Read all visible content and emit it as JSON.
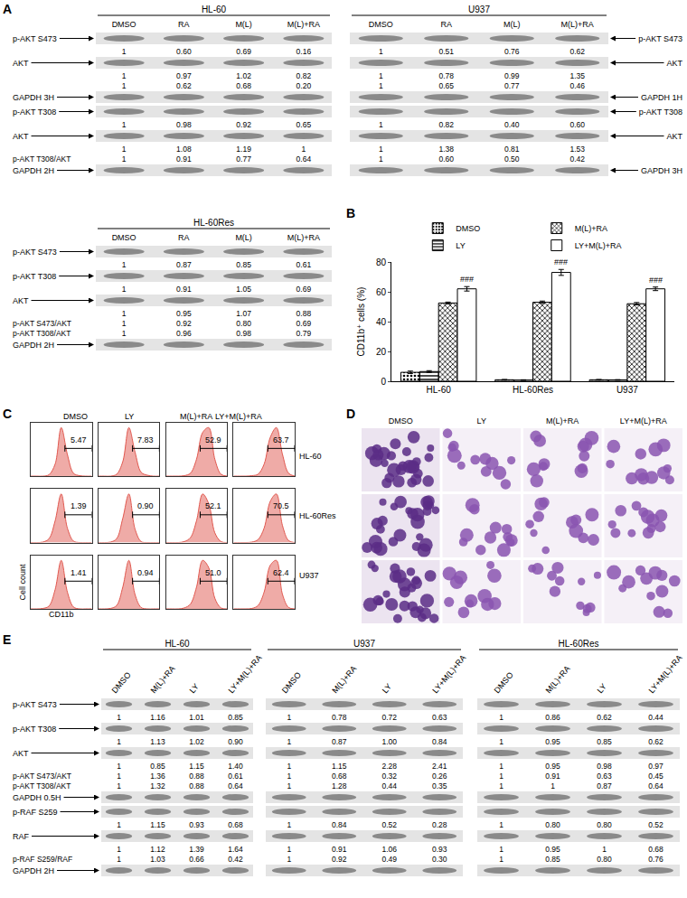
{
  "letters": [
    "A",
    "B",
    "C",
    "D",
    "E"
  ],
  "A": {
    "blots": [
      {
        "title": "HL-60",
        "side": "left",
        "lanes": [
          "DMSO",
          "RA",
          "M(L)",
          "M(L)+RA"
        ],
        "rows": [
          {
            "kind": "band",
            "label": "p-AKT S473"
          },
          {
            "kind": "values",
            "values": [
              "1",
              "0.60",
              "0.69",
              "0.16"
            ]
          },
          {
            "kind": "band",
            "label": "AKT"
          },
          {
            "kind": "values",
            "values": [
              "1",
              "0.97",
              "1.02",
              "0.82"
            ]
          },
          {
            "kind": "values",
            "values": [
              "1",
              "0.62",
              "0.68",
              "0.20"
            ]
          },
          {
            "kind": "band",
            "label": "GAPDH 3H"
          },
          {
            "kind": "band",
            "label": "p-AKT T308"
          },
          {
            "kind": "values",
            "values": [
              "1",
              "0.98",
              "0.92",
              "0.65"
            ]
          },
          {
            "kind": "band",
            "label": "AKT"
          },
          {
            "kind": "values",
            "values": [
              "1",
              "1.08",
              "1.19",
              "1"
            ]
          },
          {
            "kind": "values",
            "label": "p-AKT T308/AKT",
            "values": [
              "1",
              "0.91",
              "0.77",
              "0.64"
            ]
          },
          {
            "kind": "band",
            "label": "GAPDH 2H"
          }
        ]
      },
      {
        "title": "U937",
        "side": "right",
        "lanes": [
          "DMSO",
          "RA",
          "M(L)",
          "M(L)+RA"
        ],
        "rows": [
          {
            "kind": "band",
            "label": "p-AKT S473"
          },
          {
            "kind": "values",
            "values": [
              "1",
              "0.51",
              "0.76",
              "0.62"
            ]
          },
          {
            "kind": "band",
            "label": "AKT"
          },
          {
            "kind": "values",
            "values": [
              "1",
              "0.78",
              "0.99",
              "1.35"
            ]
          },
          {
            "kind": "values",
            "values": [
              "1",
              "0.65",
              "0.77",
              "0.46"
            ]
          },
          {
            "kind": "band",
            "label": "GAPDH 1H"
          },
          {
            "kind": "band",
            "label": "p-AKT T308"
          },
          {
            "kind": "values",
            "values": [
              "1",
              "0.82",
              "0.40",
              "0.60"
            ]
          },
          {
            "kind": "band",
            "label": "AKT"
          },
          {
            "kind": "values",
            "values": [
              "1",
              "1.38",
              "0.81",
              "1.53"
            ]
          },
          {
            "kind": "values",
            "values": [
              "1",
              "0.60",
              "0.50",
              "0.42"
            ]
          },
          {
            "kind": "band",
            "label": "GAPDH 3H"
          }
        ]
      },
      {
        "title": "HL-60Res",
        "side": "left",
        "lanes": [
          "DMSO",
          "RA",
          "M(L)",
          "M(L)+RA"
        ],
        "rows": [
          {
            "kind": "band",
            "label": "p-AKT S473"
          },
          {
            "kind": "values",
            "values": [
              "1",
              "0.87",
              "0.85",
              "0.61"
            ]
          },
          {
            "kind": "band",
            "label": "p-AKT T308"
          },
          {
            "kind": "values",
            "values": [
              "1",
              "0.91",
              "1.05",
              "0.69"
            ]
          },
          {
            "kind": "band",
            "label": "AKT"
          },
          {
            "kind": "values",
            "values": [
              "1",
              "0.95",
              "1.07",
              "0.88"
            ]
          },
          {
            "kind": "values",
            "label": "p-AKT S473/AKT",
            "values": [
              "1",
              "0.92",
              "0.80",
              "0.69"
            ]
          },
          {
            "kind": "values",
            "label": "p-AKT T308/AKT",
            "values": [
              "1",
              "0.96",
              "0.98",
              "0.79"
            ]
          },
          {
            "kind": "band",
            "label": "GAPDH 2H"
          }
        ]
      }
    ]
  },
  "chart_data": {
    "type": "bar",
    "categories": [
      "HL-60",
      "HL-60Res",
      "U937"
    ],
    "ylabel": "CD11b⁺ cells (%)",
    "ylim": [
      0,
      80
    ],
    "yticks": [
      0,
      20,
      40,
      60,
      80
    ],
    "legend": "top",
    "series": [
      {
        "name": "DMSO",
        "color": "#6e6e6e",
        "marker": "dots",
        "values": [
          6,
          1,
          1
        ],
        "errors": [
          0.8,
          0.2,
          0.2
        ]
      },
      {
        "name": "LY",
        "color": "#ffffff",
        "marker": "lines",
        "values": [
          6.5,
          0.8,
          0.9
        ],
        "errors": [
          0.6,
          0.2,
          0.2
        ]
      },
      {
        "name": "M(L)+RA",
        "color": "#9a9a9a",
        "marker": "cross",
        "values": [
          52.5,
          53,
          52
        ],
        "errors": [
          0.6,
          0.8,
          0.8
        ]
      },
      {
        "name": "LY+M(L)+RA",
        "color": "#ffffff",
        "marker": "plain",
        "values": [
          62,
          73,
          62
        ],
        "errors": [
          1.5,
          2,
          1.2
        ]
      }
    ],
    "annotations": [
      {
        "text": "###",
        "category": "HL-60",
        "series": "LY+M(L)+RA"
      },
      {
        "text": "###",
        "category": "HL-60Res",
        "series": "LY+M(L)+RA"
      },
      {
        "text": "###",
        "category": "U937",
        "series": "LY+M(L)+RA"
      }
    ]
  },
  "C": {
    "columns": [
      "DMSO",
      "LY",
      "M(L)+RA",
      "LY+M(L)+RA"
    ],
    "rows": [
      "HL-60",
      "HL-60Res",
      "U937"
    ],
    "x_label": "CD11b",
    "y_label": "Cell count",
    "x": [
      0,
      1,
      2,
      3,
      4,
      5,
      6,
      7,
      8,
      9,
      10
    ],
    "xlim": [
      0,
      10
    ],
    "ylim": [
      0,
      110
    ],
    "tick_labels": false,
    "color": "#e0584f",
    "gates": [
      [
        5.6,
        10
      ],
      [
        5.6,
        10
      ],
      [
        5.6,
        10
      ]
    ],
    "gate_labels": [
      [
        "5.47",
        "7.83",
        "52.9",
        "63.7"
      ],
      [
        "1.39",
        "0.90",
        "52.1",
        "70.5"
      ],
      [
        "1.41",
        "0.94",
        "51.0",
        "62.4"
      ]
    ],
    "counts": [
      [
        [
          0,
          0,
          0,
          3,
          25,
          100,
          45,
          6,
          1,
          0,
          0
        ],
        [
          0,
          0,
          0,
          4,
          30,
          100,
          50,
          8,
          2,
          0,
          0
        ],
        [
          0,
          0,
          0,
          1,
          6,
          35,
          90,
          100,
          35,
          4,
          0
        ],
        [
          0,
          0,
          0,
          1,
          4,
          25,
          80,
          100,
          45,
          6,
          0
        ]
      ],
      [
        [
          0,
          0,
          1,
          8,
          45,
          100,
          30,
          3,
          0,
          0,
          0
        ],
        [
          0,
          0,
          1,
          8,
          50,
          100,
          28,
          2,
          0,
          0,
          0
        ],
        [
          0,
          0,
          0,
          2,
          10,
          45,
          100,
          80,
          20,
          2,
          0
        ],
        [
          0,
          0,
          0,
          1,
          6,
          30,
          85,
          100,
          35,
          4,
          0
        ]
      ],
      [
        [
          0,
          0,
          1,
          6,
          40,
          100,
          35,
          4,
          0,
          0,
          0
        ],
        [
          0,
          0,
          1,
          7,
          45,
          100,
          30,
          3,
          0,
          0,
          0
        ],
        [
          0,
          0,
          0,
          2,
          10,
          45,
          100,
          85,
          22,
          2,
          0
        ],
        [
          0,
          0,
          0,
          1,
          7,
          35,
          90,
          100,
          30,
          3,
          0
        ]
      ]
    ]
  },
  "D": {
    "columns": [
      "DMSO",
      "LY",
      "M(L)+RA",
      "LY+M(L)+RA"
    ]
  },
  "E": {
    "blots": [
      {
        "title": "HL-60",
        "side": "left",
        "lanes": [
          "DMSO",
          "M(L)+RA",
          "LY",
          "LY+M(L)+RA"
        ],
        "rows": [
          {
            "kind": "band",
            "label": "p-AKT S473"
          },
          {
            "kind": "values",
            "values": [
              "1",
              "1.16",
              "1.01",
              "0.85"
            ]
          },
          {
            "kind": "band",
            "label": "p-AKT T308"
          },
          {
            "kind": "values",
            "values": [
              "1",
              "1.13",
              "1.02",
              "0.90"
            ]
          },
          {
            "kind": "band",
            "label": "AKT"
          },
          {
            "kind": "values",
            "values": [
              "1",
              "0.85",
              "1.15",
              "1.40"
            ]
          },
          {
            "kind": "values",
            "label": "p-AKT S473/AKT",
            "values": [
              "1",
              "1.36",
              "0.88",
              "0.61"
            ]
          },
          {
            "kind": "values",
            "label": "p-AKT T308/AKT",
            "values": [
              "1",
              "1.32",
              "0.88",
              "0.64"
            ]
          },
          {
            "kind": "band",
            "label": "GAPDH 0.5H"
          },
          {
            "kind": "band",
            "label": "p-RAF S259"
          },
          {
            "kind": "values",
            "values": [
              "1",
              "1.15",
              "0.93",
              "0.68"
            ]
          },
          {
            "kind": "band",
            "label": "RAF"
          },
          {
            "kind": "values",
            "values": [
              "1",
              "1.12",
              "1.39",
              "1.64"
            ]
          },
          {
            "kind": "values",
            "label": "p-RAF S259/RAF",
            "values": [
              "1",
              "1.03",
              "0.66",
              "0.42"
            ]
          },
          {
            "kind": "band",
            "label": "GAPDH 2H"
          }
        ]
      },
      {
        "title": "U937",
        "side": "none",
        "lanes": [
          "DMSO",
          "M(L)+RA",
          "LY",
          "LY+M(L)+RA"
        ],
        "rows": [
          {
            "kind": "band"
          },
          {
            "kind": "values",
            "values": [
              "1",
              "0.78",
              "0.72",
              "0.63"
            ]
          },
          {
            "kind": "band"
          },
          {
            "kind": "values",
            "values": [
              "1",
              "0.87",
              "1.00",
              "0.84"
            ]
          },
          {
            "kind": "band"
          },
          {
            "kind": "values",
            "values": [
              "1",
              "1.15",
              "2.28",
              "2.41"
            ]
          },
          {
            "kind": "values",
            "values": [
              "1",
              "0.68",
              "0.32",
              "0.26"
            ]
          },
          {
            "kind": "values",
            "values": [
              "1",
              "1.28",
              "0.44",
              "0.35"
            ]
          },
          {
            "kind": "band"
          },
          {
            "kind": "band"
          },
          {
            "kind": "values",
            "values": [
              "1",
              "0.84",
              "0.52",
              "0.28"
            ]
          },
          {
            "kind": "band"
          },
          {
            "kind": "values",
            "values": [
              "1",
              "0.91",
              "1.06",
              "0.93"
            ]
          },
          {
            "kind": "values",
            "values": [
              "1",
              "0.92",
              "0.49",
              "0.30"
            ]
          },
          {
            "kind": "band"
          }
        ]
      },
      {
        "title": "HL-60Res",
        "side": "none",
        "lanes": [
          "DMSO",
          "M(L)+RA",
          "LY",
          "LY+M(L)+RA"
        ],
        "rows": [
          {
            "kind": "band"
          },
          {
            "kind": "values",
            "values": [
              "1",
              "0.86",
              "0.62",
              "0.44"
            ]
          },
          {
            "kind": "band"
          },
          {
            "kind": "values",
            "values": [
              "1",
              "0.95",
              "0.85",
              "0.62"
            ]
          },
          {
            "kind": "band"
          },
          {
            "kind": "values",
            "values": [
              "1",
              "0.95",
              "0.98",
              "0.97"
            ]
          },
          {
            "kind": "values",
            "values": [
              "1",
              "0.91",
              "0.63",
              "0.45"
            ]
          },
          {
            "kind": "values",
            "values": [
              "1",
              "1",
              "0.87",
              "0.64"
            ]
          },
          {
            "kind": "band"
          },
          {
            "kind": "band"
          },
          {
            "kind": "values",
            "values": [
              "1",
              "0.80",
              "0.80",
              "0.52"
            ]
          },
          {
            "kind": "band"
          },
          {
            "kind": "values",
            "values": [
              "1",
              "0.95",
              "1",
              "0.68"
            ]
          },
          {
            "kind": "values",
            "values": [
              "1",
              "0.85",
              "0.80",
              "0.76"
            ]
          },
          {
            "kind": "band"
          }
        ]
      }
    ]
  }
}
